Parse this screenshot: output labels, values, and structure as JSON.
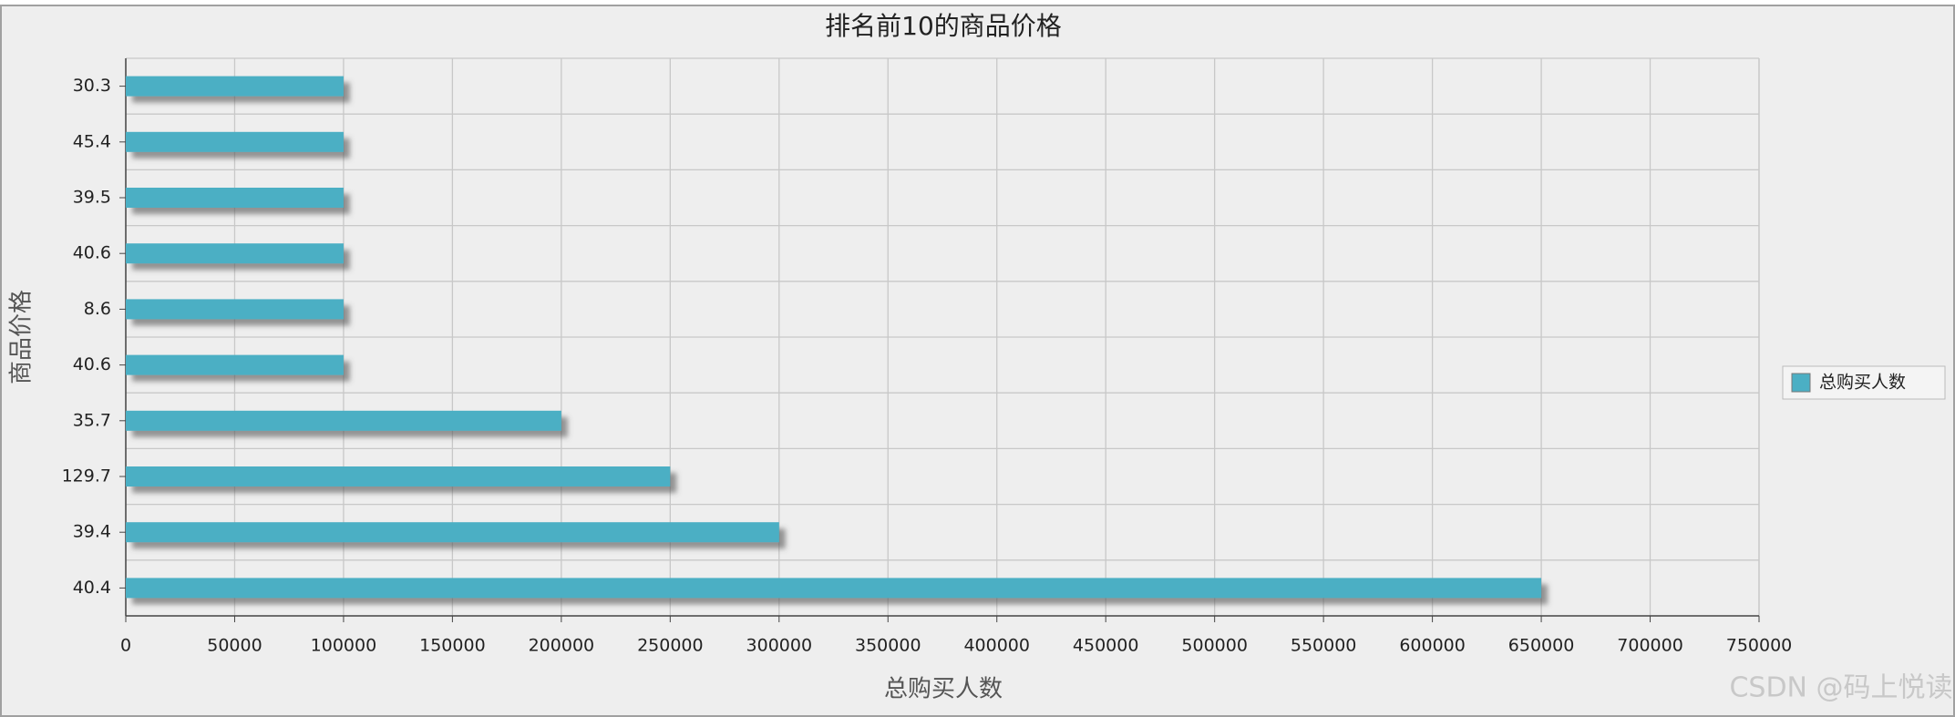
{
  "chart_data": {
    "type": "hbar",
    "title": "排名前10的商品价格",
    "x_label": "总购买人数",
    "y_label": "商品价格",
    "categories": [
      "30.3",
      "45.4",
      "39.5",
      "40.6",
      "8.6",
      "40.6",
      "35.7",
      "129.7",
      "39.4",
      "40.4"
    ],
    "series": [
      {
        "name": "总购买人数",
        "color": "#4bafc4",
        "values": [
          100000,
          100000,
          100000,
          100000,
          100000,
          100000,
          200000,
          250000,
          300000,
          650000
        ]
      }
    ],
    "xlim": [
      0,
      750000
    ],
    "xticks": [
      0,
      50000,
      100000,
      150000,
      200000,
      250000,
      300000,
      350000,
      400000,
      450000,
      500000,
      550000,
      600000,
      650000,
      700000,
      750000
    ],
    "grid": true,
    "legend": "right",
    "watermark": "CSDN @码上悦读"
  }
}
